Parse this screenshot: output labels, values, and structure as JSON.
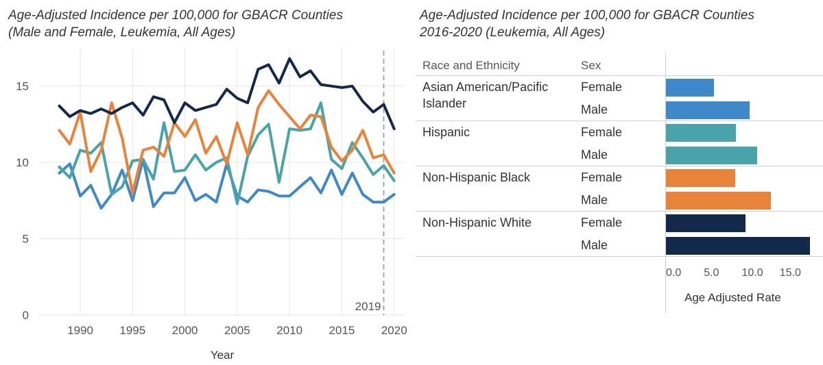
{
  "left_title_line1": "Age-Adjusted Incidence per 100,000 for GBACR Counties",
  "left_title_line2": "(Male and Female, Leukemia, All Ages)",
  "right_title_line1": "Age-Adjusted Incidence per 100,000 for GBACR Counties",
  "right_title_line2": "2016-2020 (Leukemia, All Ages)",
  "colors": {
    "navy": "#13294b",
    "orange": "#e8843a",
    "teal": "#48a3aa",
    "blue": "#4089c8",
    "grid": "#e6e6e6",
    "refline": "#a6a6a6"
  },
  "chart_data": [
    {
      "type": "line",
      "title": "Age-Adjusted Incidence per 100,000 for GBACR Counties (Male and Female, Leukemia, All Ages)",
      "xlabel": "Year",
      "ylabel": "",
      "xlim": [
        1986,
        2021
      ],
      "ylim": [
        0,
        17.5
      ],
      "xticks": [
        1990,
        1995,
        2000,
        2005,
        2010,
        2015,
        2020
      ],
      "yticks": [
        0,
        5,
        10,
        15
      ],
      "reference_line": {
        "x": 2019,
        "label": "2019"
      },
      "x": [
        1988,
        1989,
        1990,
        1991,
        1992,
        1993,
        1994,
        1995,
        1996,
        1997,
        1998,
        1999,
        2000,
        2001,
        2002,
        2003,
        2004,
        2005,
        2006,
        2007,
        2008,
        2009,
        2010,
        2011,
        2012,
        2013,
        2014,
        2015,
        2016,
        2017,
        2018,
        2019,
        2020
      ],
      "series": [
        {
          "name": "Non-Hispanic White",
          "color": "#13294b",
          "values": [
            13.7,
            13.0,
            13.4,
            13.2,
            13.5,
            13.2,
            13.6,
            13.9,
            13.1,
            14.3,
            14.1,
            12.6,
            13.9,
            13.4,
            13.6,
            13.8,
            14.8,
            14.2,
            13.9,
            16.1,
            16.4,
            15.2,
            16.8,
            15.6,
            16.0,
            15.1,
            15.0,
            14.9,
            15.0,
            14.0,
            13.3,
            13.8,
            12.2
          ]
        },
        {
          "name": "Non-Hispanic Black",
          "color": "#e8843a",
          "values": [
            12.1,
            11.2,
            13.3,
            9.4,
            10.8,
            13.9,
            11.6,
            8.0,
            10.8,
            11.0,
            10.4,
            12.6,
            11.7,
            12.8,
            10.6,
            11.7,
            9.9,
            12.6,
            10.5,
            13.6,
            14.7,
            13.8,
            13.0,
            12.2,
            13.1,
            13.0,
            11.0,
            10.1,
            10.8,
            12.1,
            10.3,
            10.5,
            9.3
          ]
        },
        {
          "name": "Hispanic",
          "color": "#48a3aa",
          "values": [
            9.7,
            9.0,
            10.8,
            10.6,
            11.3,
            7.9,
            8.4,
            10.1,
            10.2,
            8.9,
            12.6,
            9.4,
            9.5,
            10.5,
            9.5,
            10.0,
            10.3,
            7.3,
            10.4,
            11.8,
            12.5,
            8.7,
            12.2,
            12.1,
            12.2,
            13.9,
            10.2,
            9.6,
            11.3,
            10.3,
            9.2,
            9.8,
            8.8
          ]
        },
        {
          "name": "Asian American/Pacific Islander",
          "color": "#4089c8",
          "values": [
            9.3,
            9.9,
            7.8,
            8.5,
            7.0,
            7.9,
            9.5,
            7.5,
            10.2,
            7.1,
            8.0,
            8.0,
            9.0,
            7.5,
            7.9,
            7.4,
            9.9,
            7.8,
            7.4,
            8.2,
            8.1,
            7.8,
            7.8,
            8.4,
            9.0,
            8.0,
            9.5,
            7.9,
            9.3,
            7.9,
            7.4,
            7.4,
            7.9
          ]
        }
      ]
    },
    {
      "type": "bar",
      "orientation": "horizontal",
      "title": "Age-Adjusted Incidence per 100,000 for GBACR Counties 2016-2020 (Leukemia, All Ages)",
      "col_headers": [
        "Race and Ethnicity",
        "Sex"
      ],
      "xlabel": "Age Adjusted Rate",
      "xlim": [
        0,
        19
      ],
      "xticks": [
        "0.0",
        "5.0",
        "10.0",
        "15.0"
      ],
      "xtick_values": [
        0,
        5,
        10,
        15
      ],
      "groups": [
        {
          "name": "Asian American/Pacific Islander",
          "name_lines": [
            "Asian American/Pacific",
            "Islander"
          ],
          "color": "#4089c8",
          "bars": [
            {
              "sex": "Female",
              "value": 6.3
            },
            {
              "sex": "Male",
              "value": 11.0
            }
          ]
        },
        {
          "name": "Hispanic",
          "name_lines": [
            "Hispanic"
          ],
          "color": "#48a3aa",
          "bars": [
            {
              "sex": "Female",
              "value": 9.2
            },
            {
              "sex": "Male",
              "value": 12.0
            }
          ]
        },
        {
          "name": "Non-Hispanic Black",
          "name_lines": [
            "Non-Hispanic Black"
          ],
          "color": "#e8843a",
          "bars": [
            {
              "sex": "Female",
              "value": 9.1
            },
            {
              "sex": "Male",
              "value": 13.8
            }
          ]
        },
        {
          "name": "Non-Hispanic White",
          "name_lines": [
            "Non-Hispanic White"
          ],
          "color": "#13294b",
          "bars": [
            {
              "sex": "Female",
              "value": 10.5
            },
            {
              "sex": "Male",
              "value": 19.0
            }
          ]
        }
      ]
    }
  ]
}
